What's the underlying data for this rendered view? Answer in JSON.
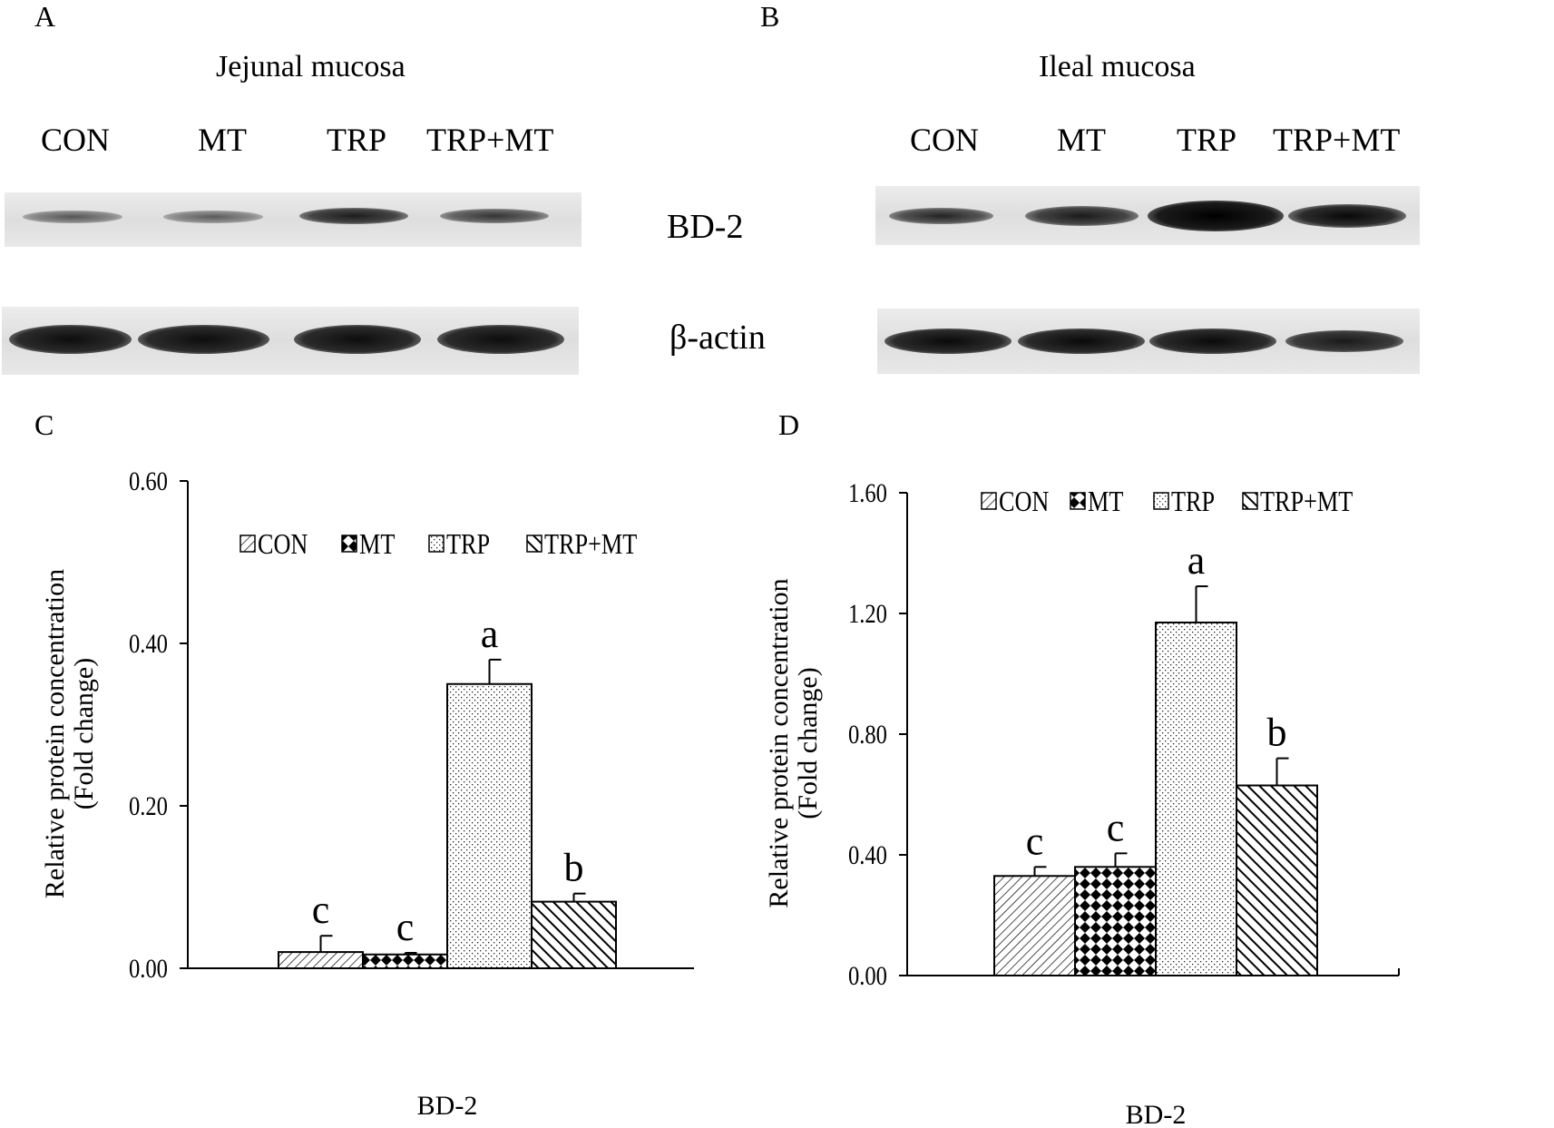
{
  "panels": {
    "A": {
      "letter": "A",
      "title": "Jejunal mucosa",
      "lanes": [
        "CON",
        "MT",
        "TRP",
        "TRP+MT"
      ]
    },
    "B": {
      "letter": "B",
      "title": "Ileal mucosa",
      "lanes": [
        "CON",
        "MT",
        "TRP",
        "TRP+MT"
      ]
    },
    "C": {
      "letter": "C"
    },
    "D": {
      "letter": "D"
    }
  },
  "blot_labels": {
    "target": "BD-2",
    "control": "β-actin"
  },
  "chart_data": [
    {
      "type": "bar",
      "panel": "C",
      "xlabel": "BD-2",
      "ylabel": "Relative protein concentration",
      "ylabel2": "(Fold change)",
      "ylim": [
        0,
        0.6
      ],
      "yticks": [
        "0.00",
        "0.20",
        "0.40",
        "0.60"
      ],
      "categories": [
        "BD-2"
      ],
      "legend_position": "top",
      "series": [
        {
          "name": "CON",
          "values": [
            0.02
          ],
          "error": [
            0.02
          ],
          "letter": "c",
          "pattern": "diag"
        },
        {
          "name": "MT",
          "values": [
            0.017
          ],
          "error": [
            0.002
          ],
          "letter": "c",
          "pattern": "diamond"
        },
        {
          "name": "TRP",
          "values": [
            0.35
          ],
          "error": [
            0.03
          ],
          "letter": "a",
          "pattern": "dots"
        },
        {
          "name": "TRP+MT",
          "values": [
            0.082
          ],
          "error": [
            0.01
          ],
          "letter": "b",
          "pattern": "backdiag"
        }
      ]
    },
    {
      "type": "bar",
      "panel": "D",
      "xlabel": "BD-2",
      "ylabel": "Relative protein concentration",
      "ylabel2": "(Fold change)",
      "ylim": [
        0,
        1.6
      ],
      "yticks": [
        "0.00",
        "0.40",
        "0.80",
        "1.20",
        "1.60"
      ],
      "categories": [
        "BD-2"
      ],
      "legend_position": "top",
      "series": [
        {
          "name": "CON",
          "values": [
            0.33
          ],
          "error": [
            0.03
          ],
          "letter": "c",
          "pattern": "diag"
        },
        {
          "name": "MT",
          "values": [
            0.36
          ],
          "error": [
            0.045
          ],
          "letter": "c",
          "pattern": "diamond"
        },
        {
          "name": "TRP",
          "values": [
            1.17
          ],
          "error": [
            0.12
          ],
          "letter": "a",
          "pattern": "dots"
        },
        {
          "name": "TRP+MT",
          "values": [
            0.63
          ],
          "error": [
            0.09
          ],
          "letter": "b",
          "pattern": "backdiag"
        }
      ]
    }
  ]
}
